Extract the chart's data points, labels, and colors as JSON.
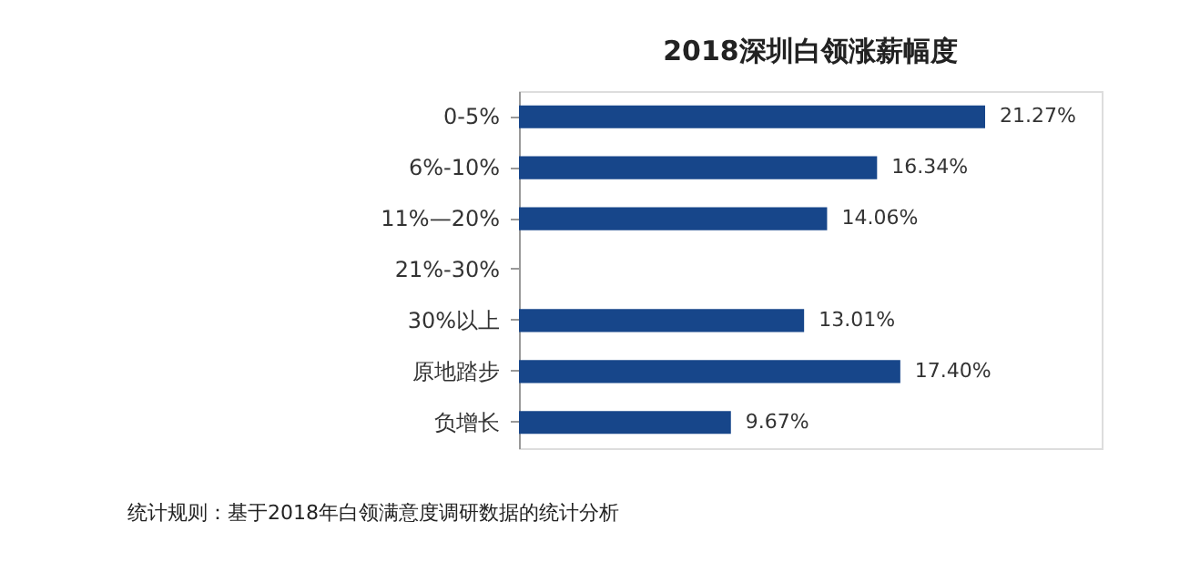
{
  "chart_data": {
    "type": "bar",
    "orientation": "horizontal",
    "title": "2018深圳白领涨薪幅度",
    "categories": [
      "0-5%",
      "6%-10%",
      "11%—20%",
      "21%-30%",
      "30%以上",
      "原地踏步",
      "负增长"
    ],
    "values": [
      21.27,
      16.34,
      14.06,
      null,
      13.01,
      17.4,
      9.67
    ],
    "value_labels": [
      "21.27%",
      "16.34%",
      "14.06%",
      null,
      "13.01%",
      "17.40%",
      "9.67%"
    ],
    "color": "#17468a",
    "annotations": [
      "统计规则：基于2018年白领满意度调研数据的统计分析"
    ]
  }
}
